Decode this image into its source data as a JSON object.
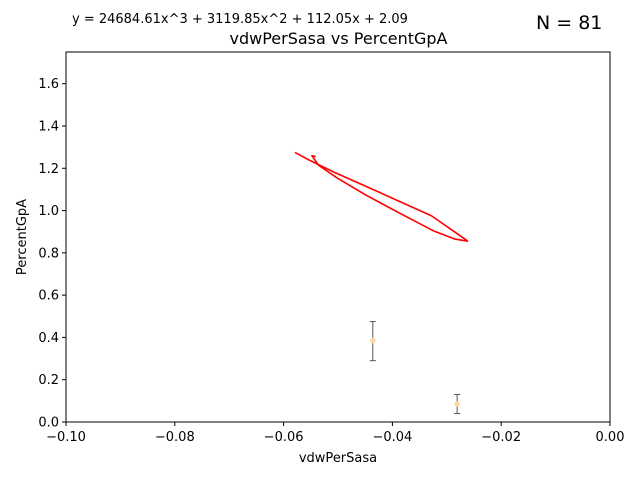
{
  "annotations": {
    "equation": "y = 24684.61x^3 + 3119.85x^2 + 112.05x + 2.09",
    "n_label": "N = 81"
  },
  "chart_data": {
    "type": "scatter",
    "title": "vdwPerSasa vs PercentGpA",
    "xlabel": "vdwPerSasa",
    "ylabel": "PercentGpA",
    "xlim": [
      -0.1,
      0.0
    ],
    "ylim": [
      0.0,
      1.75
    ],
    "xticks": [
      -0.1,
      -0.08,
      -0.06,
      -0.04,
      -0.02,
      0.0
    ],
    "xtick_labels": [
      "−0.10",
      "−0.08",
      "−0.06",
      "−0.04",
      "−0.02",
      "0.00"
    ],
    "yticks": [
      0.0,
      0.2,
      0.4,
      0.6,
      0.8,
      1.0,
      1.2,
      1.4,
      1.6
    ],
    "ytick_labels": [
      "0.0",
      "0.2",
      "0.4",
      "0.6",
      "0.8",
      "1.0",
      "1.2",
      "1.4",
      "1.6"
    ],
    "grid": false,
    "fit_curve": {
      "color": "#ff0000",
      "coefficients": [
        24684.61,
        3119.85,
        112.05,
        2.09
      ],
      "x": [
        -0.0579,
        -0.055,
        -0.0506,
        -0.0436,
        -0.0328,
        -0.0265,
        -0.0262,
        -0.0285,
        -0.0325,
        -0.0385,
        -0.045,
        -0.0502,
        -0.0536,
        -0.0548,
        -0.0541
      ],
      "y": [
        1.275,
        1.235,
        1.18,
        1.1,
        0.975,
        0.862,
        0.855,
        0.865,
        0.905,
        0.985,
        1.075,
        1.155,
        1.215,
        1.26,
        1.255
      ]
    },
    "points": [
      {
        "x": -0.0436,
        "y": 0.385,
        "err_low": 0.29,
        "err_high": 0.475
      },
      {
        "x": -0.0281,
        "y": 0.086,
        "err_low": 0.04,
        "err_high": 0.13
      }
    ],
    "point_color": "#ffd8a0",
    "errorbar_color": "#555555"
  }
}
